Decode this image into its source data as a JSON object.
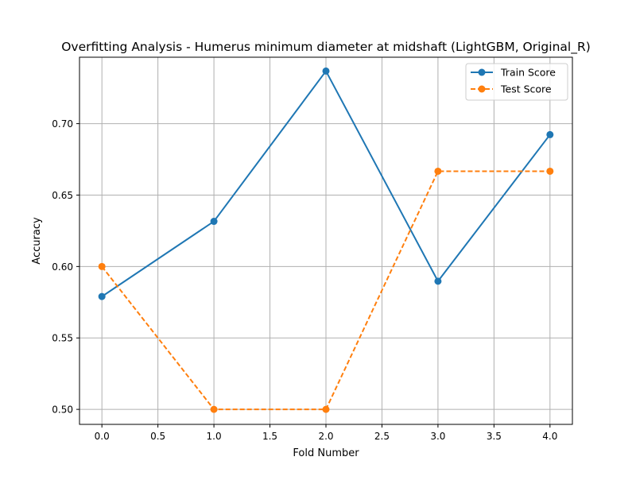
{
  "chart_data": {
    "type": "line",
    "title": "Overfitting Analysis - Humerus minimum diameter at midshaft (LightGBM, Original_R)",
    "xlabel": "Fold Number",
    "ylabel": "Accuracy",
    "x": [
      0,
      1,
      2,
      3,
      4
    ],
    "xlim": [
      -0.2,
      4.2
    ],
    "ylim": [
      0.4895,
      0.7465
    ],
    "xticks": [
      0.0,
      0.5,
      1.0,
      1.5,
      2.0,
      2.5,
      3.0,
      3.5,
      4.0
    ],
    "xtick_labels": [
      "0.0",
      "0.5",
      "1.0",
      "1.5",
      "2.0",
      "2.5",
      "3.0",
      "3.5",
      "4.0"
    ],
    "yticks": [
      0.5,
      0.55,
      0.6,
      0.65,
      0.7
    ],
    "ytick_labels": [
      "0.50",
      "0.55",
      "0.60",
      "0.65",
      "0.70"
    ],
    "grid": true,
    "legend_position": "top-right",
    "series": [
      {
        "name": "Train Score",
        "color": "#1f77b4",
        "linestyle": "solid",
        "marker": "circle",
        "values": [
          0.579,
          0.6316,
          0.7368,
          0.5897,
          0.6923
        ]
      },
      {
        "name": "Test Score",
        "color": "#ff7f0e",
        "linestyle": "dashed",
        "marker": "circle",
        "values": [
          0.6,
          0.5,
          0.5,
          0.6667,
          0.6667
        ]
      }
    ]
  }
}
